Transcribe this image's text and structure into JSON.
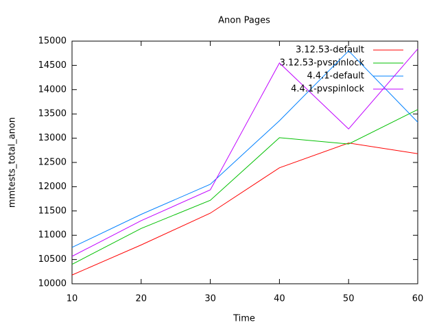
{
  "chart_data": {
    "type": "line",
    "title": "Anon Pages",
    "x_label": "Time",
    "y_label": "mmtests_total_anon",
    "x": [
      10,
      20,
      30,
      40,
      50,
      60
    ],
    "series": [
      {
        "name": "3.12.53-default",
        "color": "#ff0000",
        "values": [
          10180,
          10800,
          11455,
          12390,
          12900,
          12680
        ]
      },
      {
        "name": "3.12.53-pvspinlock",
        "color": "#00c000",
        "values": [
          10400,
          11140,
          11720,
          13010,
          12880,
          13590
        ]
      },
      {
        "name": "4.4.1-default",
        "color": "#0080ff",
        "values": [
          10750,
          11430,
          12050,
          13360,
          14800,
          13330
        ]
      },
      {
        "name": "4.4.1-pvspinlock",
        "color": "#c000ff",
        "values": [
          10565,
          11300,
          11935,
          14550,
          13190,
          14840
        ]
      }
    ],
    "xlim": [
      10,
      60
    ],
    "xticks": [
      10,
      20,
      30,
      40,
      50,
      60
    ],
    "ylim": [
      10000,
      15000
    ],
    "yticks": [
      10000,
      10500,
      11000,
      11500,
      12000,
      12500,
      13000,
      13500,
      14000,
      14500,
      15000
    ],
    "legend": "top-right",
    "grid": false
  }
}
